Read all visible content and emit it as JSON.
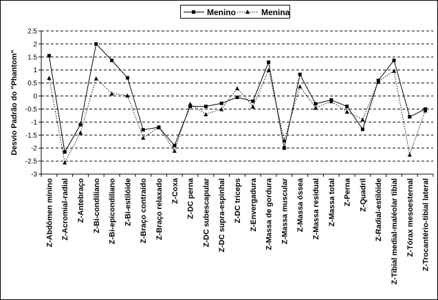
{
  "chart_data": {
    "type": "line",
    "title": "",
    "xlabel": "",
    "ylabel": "Desvio Padrão do \"Phantom\"",
    "ylim": [
      -3,
      2.5
    ],
    "yticks": [
      "2.5",
      "2",
      "1.5",
      "1",
      "0.5",
      "0",
      "-0.5",
      "-1",
      "-1.5",
      "-2",
      "-2.5",
      "-3"
    ],
    "grid": "horizontal dashed",
    "legend_placement": "top-center",
    "categories": [
      "Z-Abdômen mínino",
      "Z-Acromial-radial",
      "Z-Antebraço",
      "Z-Bi-condiliano",
      "Z-Bi-epicondiliano",
      "Z-Bi-estilóide",
      "Z-Braço contraído",
      "Z-Braço relaxado",
      "Z-Coxa",
      "Z-DC perna",
      "Z-DC subescapular",
      "Z-DC supra-espinhal",
      "Z-DC tríceps",
      "Z-Envergadura",
      "Z-Massa de gordura",
      "Z-Massa muscular",
      "Z-Massa óssea",
      "Z-Massa residual",
      "Z-Massa total",
      "Z-Perna",
      "Z-Quadril",
      "Z-Radial-estilóide",
      "Z-Tibial medial-maléolar tibial",
      "Z-Tórax mesoesternal",
      "Z-Trocantério-tibial lateral"
    ],
    "series": [
      {
        "name": "Menino",
        "color": "#000000",
        "marker": "square",
        "line": "solid",
        "values": [
          1.55,
          -2.15,
          -1.1,
          2.0,
          1.37,
          0.7,
          -1.3,
          -1.2,
          -1.9,
          -0.4,
          -0.4,
          -0.28,
          -0.05,
          -0.2,
          1.3,
          -2.0,
          0.83,
          -0.3,
          -0.15,
          -0.4,
          -1.28,
          0.6,
          1.37,
          -0.8,
          -0.5
        ]
      },
      {
        "name": "Menina",
        "color": "#000000",
        "marker": "triangle",
        "line": "dotted",
        "values": [
          0.7,
          -2.55,
          -1.4,
          0.68,
          0.1,
          0.02,
          -1.6,
          -1.2,
          -2.1,
          -0.3,
          -0.7,
          -0.5,
          0.3,
          -0.4,
          1.0,
          -1.7,
          0.37,
          -0.45,
          -0.2,
          -0.6,
          -0.9,
          0.55,
          0.97,
          -2.25,
          -0.55
        ]
      }
    ]
  }
}
